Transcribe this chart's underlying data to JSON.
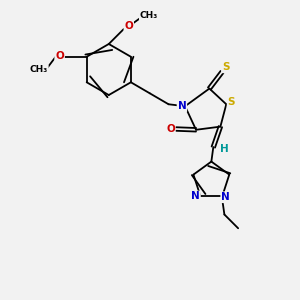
{
  "background_color": "#f2f2f2",
  "figsize": [
    3.0,
    3.0
  ],
  "dpi": 100,
  "atom_colors": {
    "C": "#000000",
    "N": "#0000cc",
    "O": "#cc0000",
    "S": "#ccaa00",
    "H": "#009999"
  },
  "bond_color": "#000000",
  "bond_lw": 1.3,
  "font_size": 7.5,
  "font_size_small": 6.5,
  "xlim": [
    0.0,
    6.5
  ],
  "ylim": [
    0.0,
    7.5
  ]
}
